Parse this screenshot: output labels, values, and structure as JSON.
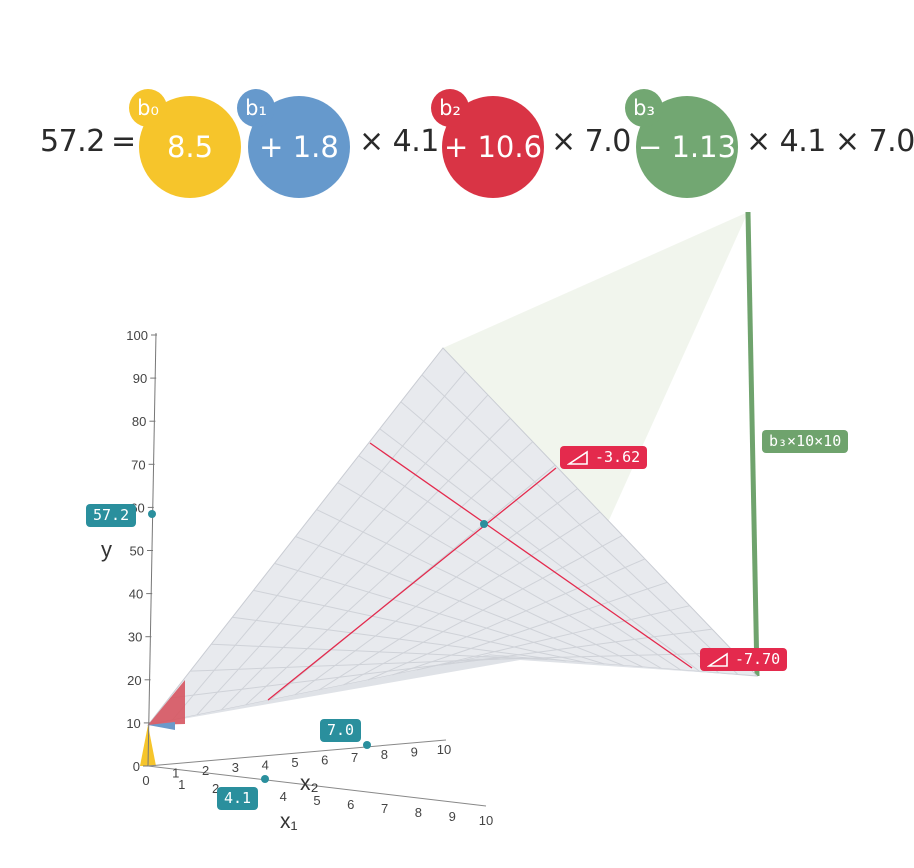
{
  "equation": {
    "result": "57.2",
    "equals": "=",
    "terms": [
      {
        "badge": "b₀",
        "value": "8.5",
        "color": "#f6c52b"
      },
      {
        "badge": "b₁",
        "value": "+ 1.8",
        "color": "#6699cc",
        "suffix": "× 4.1"
      },
      {
        "badge": "b₂",
        "value": "+ 10.6",
        "color": "#d93445",
        "suffix": "× 7.0"
      },
      {
        "badge": "b₃",
        "value": "− 1.13",
        "color": "#72a772",
        "suffix": "× 4.1 × 7.0"
      }
    ]
  },
  "axes": {
    "y_label": "y",
    "x1_label": "x₁",
    "x2_label": "x₂",
    "y_ticks": [
      "0",
      "10",
      "20",
      "30",
      "40",
      "50",
      "60",
      "70",
      "80",
      "90",
      "100"
    ],
    "x1_ticks": [
      "0",
      "1",
      "2",
      "3",
      "4",
      "5",
      "6",
      "7",
      "8",
      "9",
      "10"
    ],
    "x2_ticks": [
      "0",
      "1",
      "2",
      "3",
      "4",
      "5",
      "6",
      "7",
      "8",
      "9",
      "10"
    ]
  },
  "markers": {
    "y_value": "57.2",
    "x1_value": "4.1",
    "x2_value": "7.0"
  },
  "slope_labels": {
    "slope_x2": "-3.62",
    "slope_x1": "-7.70",
    "interaction": "b₃×10×10"
  },
  "colors": {
    "teal": "#2a8f9d",
    "red": "#e42a4d",
    "green": "#6fa36d",
    "yellow": "#f6c52b",
    "blue": "#6699cc",
    "surface": "#e6e8ec"
  }
}
